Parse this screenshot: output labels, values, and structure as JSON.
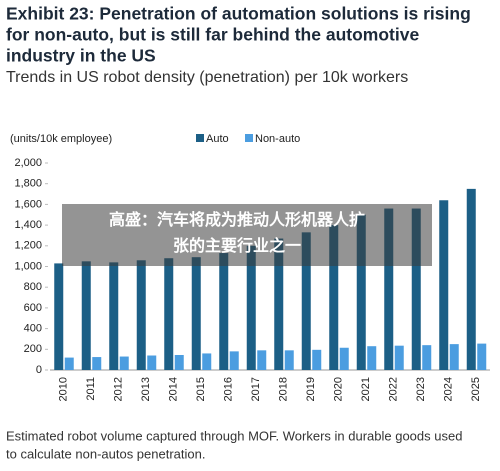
{
  "chart_data": {
    "type": "bar",
    "title": [
      "Exhibit 23: Penetration of automation solutions is rising",
      "for non-auto, but is still far behind the automotive",
      "industry in the US"
    ],
    "subtitle": "Trends in US robot density (penetration) per 10k workers",
    "y_label": "(units/10k employee)",
    "categories": [
      "2010",
      "2011",
      "2012",
      "2013",
      "2014",
      "2015",
      "2016",
      "2017",
      "2018",
      "2019",
      "2020",
      "2021",
      "2022",
      "2023",
      "2024",
      "2025"
    ],
    "series": [
      {
        "name": "Auto",
        "color": "#1c5f86",
        "values": [
          1030,
          1050,
          1040,
          1060,
          1080,
          1090,
          1130,
          1200,
          1270,
          1330,
          1400,
          1500,
          1560,
          1560,
          1640,
          1750
        ]
      },
      {
        "name": "Non-auto",
        "color": "#4b9de0",
        "values": [
          120,
          125,
          130,
          140,
          145,
          160,
          180,
          190,
          190,
          195,
          215,
          230,
          235,
          240,
          250,
          255
        ]
      }
    ],
    "ylim": [
      0,
      2000
    ],
    "yticks": [
      0,
      200,
      400,
      600,
      800,
      {
        "value": 1000,
        "label": "1,000"
      },
      {
        "value": 1200,
        "label": "1,200"
      },
      {
        "value": 1400,
        "label": "1,400"
      },
      {
        "value": 1600,
        "label": "1,600"
      },
      {
        "value": 1800,
        "label": "1,800"
      },
      {
        "value": 2000,
        "label": "2,000"
      }
    ],
    "footnote": [
      "Estimated robot volume captured through MOF. Workers in durable goods used",
      "to calculate non-autos penetration."
    ],
    "overlay": [
      "高盛：汽车将成为推动人形机器人扩",
      "张的主要行业之一"
    ]
  }
}
